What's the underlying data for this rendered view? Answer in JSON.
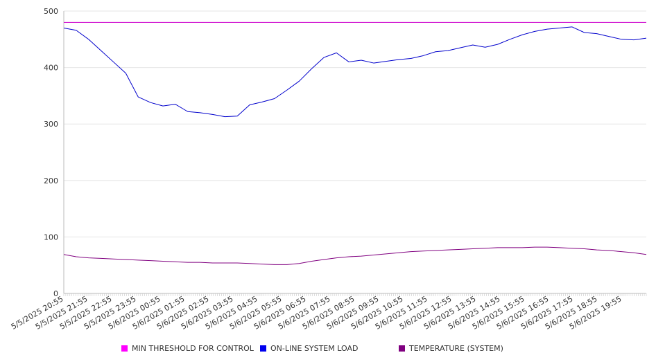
{
  "chart_data": {
    "type": "line",
    "title": "",
    "xlabel": "",
    "ylabel": "",
    "ylim": [
      0,
      500
    ],
    "yticks": [
      0,
      100,
      200,
      300,
      400,
      500
    ],
    "grid": true,
    "legend_position": "bottom",
    "x_tick_labels": [
      "5/5/2025 20:55",
      "5/5/2025 21:55",
      "5/5/2025 22:55",
      "5/5/2025 23:55",
      "5/6/2025 00:55",
      "5/6/2025 01:55",
      "5/6/2025 02:55",
      "5/6/2025 03:55",
      "5/6/2025 04:55",
      "5/6/2025 05:55",
      "5/6/2025 06:55",
      "5/6/2025 07:55",
      "5/6/2025 08:55",
      "5/6/2025 09:55",
      "5/6/2025 10:55",
      "5/6/2025 11:55",
      "5/6/2025 12:55",
      "5/6/2025 13:55",
      "5/6/2025 14:55",
      "5/6/2025 15:55",
      "5/6/2025 16:55",
      "5/6/2025 17:55",
      "5/6/2025 18:55",
      "5/6/2025 19:55"
    ],
    "x": [
      "5/5/2025 20:55",
      "5/5/2025 21:25",
      "5/5/2025 21:55",
      "5/5/2025 22:25",
      "5/5/2025 22:55",
      "5/5/2025 23:25",
      "5/5/2025 23:55",
      "5/6/2025 00:25",
      "5/6/2025 00:55",
      "5/6/2025 01:25",
      "5/6/2025 01:55",
      "5/6/2025 02:25",
      "5/6/2025 02:55",
      "5/6/2025 03:25",
      "5/6/2025 03:55",
      "5/6/2025 04:25",
      "5/6/2025 04:55",
      "5/6/2025 05:25",
      "5/6/2025 05:55",
      "5/6/2025 06:25",
      "5/6/2025 06:55",
      "5/6/2025 07:25",
      "5/6/2025 07:55",
      "5/6/2025 08:25",
      "5/6/2025 08:55",
      "5/6/2025 09:25",
      "5/6/2025 09:55",
      "5/6/2025 10:25",
      "5/6/2025 10:55",
      "5/6/2025 11:25",
      "5/6/2025 11:55",
      "5/6/2025 12:25",
      "5/6/2025 12:55",
      "5/6/2025 13:25",
      "5/6/2025 13:55",
      "5/6/2025 14:25",
      "5/6/2025 14:55",
      "5/6/2025 15:25",
      "5/6/2025 15:55",
      "5/6/2025 16:25",
      "5/6/2025 16:55",
      "5/6/2025 17:25",
      "5/6/2025 17:55",
      "5/6/2025 18:25",
      "5/6/2025 18:55",
      "5/6/2025 19:25",
      "5/6/2025 19:55",
      "5/6/2025 20:25"
    ],
    "series": [
      {
        "name": "MIN THRESHOLD FOR CONTROL",
        "color": "#cc00cc",
        "values": [
          480,
          480,
          480,
          480,
          480,
          480,
          480,
          480,
          480,
          480,
          480,
          480,
          480,
          480,
          480,
          480,
          480,
          480,
          480,
          480,
          480,
          480,
          480,
          480,
          480,
          480,
          480,
          480,
          480,
          480,
          480,
          480,
          480,
          480,
          480,
          480,
          480,
          480,
          480,
          480,
          480,
          480,
          480,
          480,
          480,
          480,
          480,
          480
        ]
      },
      {
        "name": "ON-LINE SYSTEM LOAD",
        "color": "#0000cc",
        "values": [
          470,
          466,
          450,
          430,
          410,
          390,
          348,
          338,
          332,
          335,
          322,
          320,
          317,
          313,
          314,
          334,
          339,
          345,
          360,
          376,
          398,
          418,
          426,
          410,
          413,
          408,
          411,
          414,
          416,
          421,
          428,
          430,
          435,
          440,
          436,
          441,
          450,
          458,
          464,
          468,
          470,
          472,
          462,
          460,
          455,
          450,
          449,
          452
        ]
      },
      {
        "name": "TEMPERATURE (SYSTEM)",
        "color": "#800080",
        "values": [
          69,
          65,
          63,
          62,
          61,
          60,
          59,
          58,
          57,
          56,
          55,
          55,
          54,
          54,
          54,
          53,
          52,
          51,
          51,
          53,
          57,
          60,
          63,
          65,
          66,
          68,
          70,
          72,
          74,
          75,
          76,
          77,
          78,
          79,
          80,
          81,
          81,
          81,
          82,
          82,
          81,
          80,
          79,
          77,
          76,
          74,
          72,
          69
        ]
      }
    ]
  }
}
